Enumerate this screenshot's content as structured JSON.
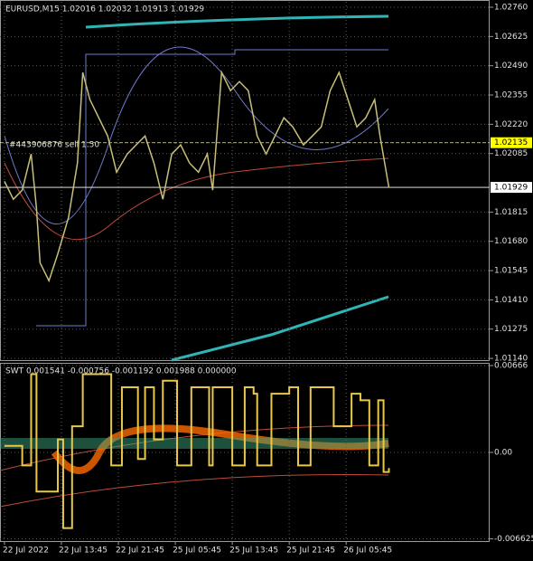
{
  "chart_data": [
    {
      "type": "line",
      "title": "EURUSD,M15 1.02016 1.02032 1.01913 1.01929",
      "annotation": "#443906876 sell 1.50",
      "xlim": [
        -2.5,
        272.6
      ],
      "xticks": [
        {
          "value": 0,
          "label": "22 Jul 2022"
        },
        {
          "value": 32,
          "label": "22 Jul 13:45"
        },
        {
          "value": 64,
          "label": "22 Jul 21:45"
        },
        {
          "value": 96,
          "label": "25 Jul 05:45"
        },
        {
          "value": 128,
          "label": "25 Jul 13:45"
        },
        {
          "value": 160,
          "label": "25 Jul 21:45"
        },
        {
          "value": 192,
          "label": "26 Jul 05:45"
        }
      ],
      "ylim": [
        1.01132,
        1.02785
      ],
      "yticks": [
        {
          "value": 1.0276,
          "label": "1.02760"
        },
        {
          "value": 1.02625,
          "label": "1.02625"
        },
        {
          "value": 1.0249,
          "label": "1.02490"
        },
        {
          "value": 1.02355,
          "label": "1.02355"
        },
        {
          "value": 1.0222,
          "label": "1.02220"
        },
        {
          "value": 1.02085,
          "label": "1.02085"
        },
        {
          "value": 1.01815,
          "label": "1.01815"
        },
        {
          "value": 1.0168,
          "label": "1.01680"
        },
        {
          "value": 1.01545,
          "label": "1.01545"
        },
        {
          "value": 1.0141,
          "label": "1.01410"
        },
        {
          "value": 1.01275,
          "label": "1.01275"
        },
        {
          "value": 1.0114,
          "label": "1.01140"
        }
      ],
      "price_levels": [
        {
          "value": 1.02135,
          "label": "1.02135",
          "color": "#ffff00"
        },
        {
          "value": 1.01929,
          "label": "1.01929",
          "color": "#ffffff"
        }
      ],
      "grid": true,
      "color": "#c8bf7a",
      "x": [
        0,
        5,
        10,
        15,
        18,
        20,
        25,
        30,
        36,
        41,
        44,
        48,
        53,
        58,
        63,
        69,
        74,
        79,
        84,
        89,
        94,
        99,
        104,
        109,
        114,
        117,
        122,
        127,
        132,
        137,
        142,
        147,
        152,
        157,
        162,
        168,
        173,
        178,
        183,
        188,
        193,
        198,
        203,
        208,
        211,
        216
      ],
      "values": [
        1.01957,
        1.01874,
        1.01916,
        1.02083,
        1.01832,
        1.01581,
        1.01498,
        1.01623,
        1.0179,
        1.02041,
        1.02459,
        1.02334,
        1.0225,
        1.02166,
        1.01999,
        1.02083,
        1.02125,
        1.02166,
        1.02041,
        1.01874,
        1.02083,
        1.02125,
        1.02041,
        1.01999,
        1.02083,
        1.01916,
        1.02459,
        1.02375,
        1.02417,
        1.02375,
        1.02166,
        1.02083,
        1.02166,
        1.0225,
        1.02208,
        1.02125,
        1.02166,
        1.02208,
        1.02375,
        1.02459,
        1.02334,
        1.02208,
        1.0225,
        1.02334,
        1.02166,
        1.01929
      ]
    },
    {
      "type": "step",
      "title": "SWT 0.001541 -0.000756 -0.001192 0.001988 0.000000",
      "xlim": [
        -2.5,
        272.6
      ],
      "ylim": [
        -0.0068,
        0.0068
      ],
      "yticks": [
        {
          "value": 0.00666,
          "label": "0.00666"
        },
        {
          "value": 0,
          "label": "0.00"
        },
        {
          "value": -0.006625,
          "label": "-0.006625"
        }
      ],
      "color": "#e8c84a",
      "x": [
        0,
        10,
        15,
        18,
        25,
        30,
        33,
        36,
        38,
        44,
        58,
        60,
        66,
        72,
        75,
        79,
        84,
        89,
        94,
        97,
        105,
        115,
        117,
        125,
        128,
        135,
        140,
        142,
        150,
        160,
        165,
        172,
        180,
        185,
        195,
        200,
        205,
        210,
        213,
        216
      ],
      "values": [
        0.0005,
        -0.001,
        0.006,
        -0.003,
        -0.003,
        0.001,
        -0.0058,
        -0.0058,
        0.002,
        0.006,
        0.006,
        -0.001,
        0.005,
        0.005,
        -0.0005,
        0.005,
        0.001,
        0.0055,
        0.0055,
        -0.001,
        0.005,
        -0.001,
        0.005,
        0.005,
        -0.001,
        0.005,
        0.0045,
        -0.001,
        0.0045,
        0.005,
        -0.001,
        0.005,
        0.005,
        0.002,
        0.0045,
        0.004,
        -0.001,
        0.004,
        -0.0015,
        -0.0012
      ]
    }
  ]
}
